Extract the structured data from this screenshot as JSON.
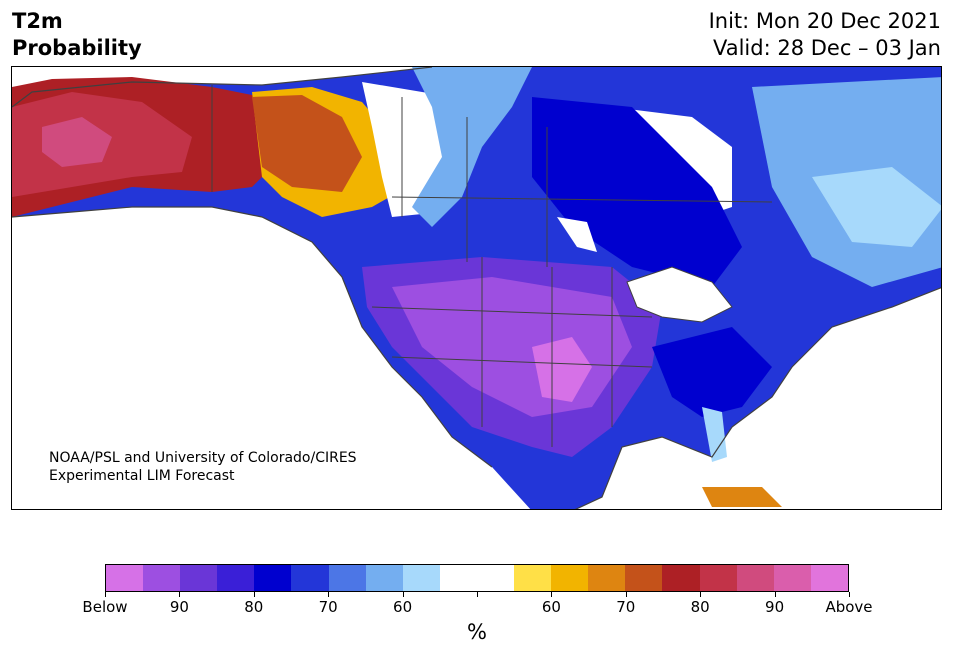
{
  "header": {
    "title_line1": "T2m",
    "title_line2": "Probability",
    "init": "Init: Mon 20 Dec 2021",
    "valid": "Valid: 28 Dec – 03 Jan"
  },
  "credit": {
    "line1": "NOAA/PSL and University of Colorado/CIRES",
    "line2": "Experimental LIM Forecast"
  },
  "colorbar": {
    "unit": "%",
    "colors": [
      "#d671e7",
      "#9d4fe1",
      "#6a36d7",
      "#3a1fd7",
      "#0000cf",
      "#2336d8",
      "#4c76e6",
      "#74aef0",
      "#a7d9fb",
      "#ffffff",
      "#ffffff",
      "#ffe047",
      "#f2b400",
      "#de8511",
      "#c4521a",
      "#ad2025",
      "#c23348",
      "#d04b7e",
      "#da5eac",
      "#e174dc"
    ],
    "tick_labels": [
      "Below",
      "90",
      "80",
      "70",
      "60",
      "",
      "",
      "60",
      "70",
      "80",
      "90",
      "Above"
    ]
  },
  "colors": {
    "land_border": "#404040",
    "lakes": "#ffffff"
  }
}
